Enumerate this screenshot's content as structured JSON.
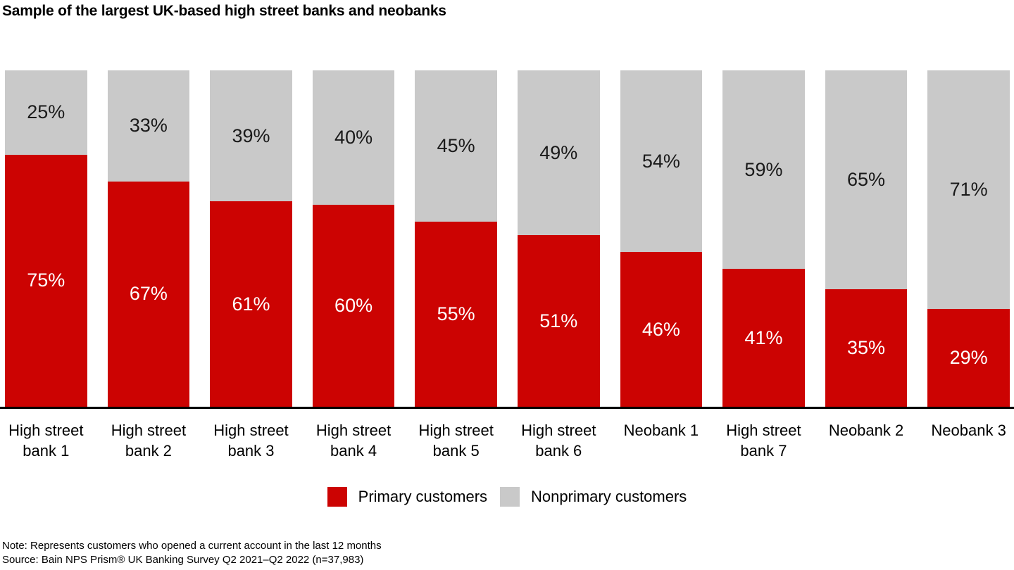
{
  "title": "Sample of the largest UK-based high street banks and neobanks",
  "chart_data": {
    "type": "bar",
    "subtype": "100-percent-stacked-column",
    "title": "Sample of the largest UK-based high street banks and neobanks",
    "categories": [
      "High street bank 1",
      "High street bank 2",
      "High street bank 3",
      "High street bank 4",
      "High street bank 5",
      "High street bank 6",
      "Neobank 1",
      "High street bank 7",
      "Neobank 2",
      "Neobank 3"
    ],
    "category_label_lines": [
      [
        "High street",
        "bank 1"
      ],
      [
        "High street",
        "bank 2"
      ],
      [
        "High street",
        "bank 3"
      ],
      [
        "High street",
        "bank 4"
      ],
      [
        "High street",
        "bank 5"
      ],
      [
        "High street",
        "bank 6"
      ],
      [
        "Neobank 1"
      ],
      [
        "High street",
        "bank 7"
      ],
      [
        "Neobank 2"
      ],
      [
        "Neobank 3"
      ]
    ],
    "series": [
      {
        "name": "Primary customers",
        "color": "#cc0302",
        "values": [
          75,
          67,
          61,
          60,
          55,
          51,
          46,
          41,
          35,
          29
        ]
      },
      {
        "name": "Nonprimary customers",
        "color": "#c9c9c9",
        "values": [
          25,
          33,
          39,
          40,
          45,
          49,
          54,
          59,
          65,
          71
        ]
      }
    ],
    "value_format": "percent",
    "ylim": [
      0,
      100
    ],
    "grid": false,
    "y_axis_visible": false,
    "data_labels": "inside-center",
    "legend_position": "bottom-center",
    "stack_order_top_to_bottom": [
      "Nonprimary customers",
      "Primary customers"
    ]
  },
  "legend": {
    "items": [
      {
        "label": "Primary customers",
        "color": "#cc0302"
      },
      {
        "label": "Nonprimary customers",
        "color": "#c9c9c9"
      }
    ]
  },
  "footnotes": {
    "note": "Note: Represents customers who opened a current account in the last 12 months",
    "source": "Source: Bain NPS Prism® UK Banking Survey Q2 2021–Q2 2022 (n=37,983)"
  }
}
